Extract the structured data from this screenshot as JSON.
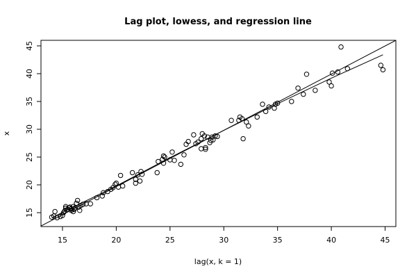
{
  "chart_data": {
    "type": "scatter",
    "title": "Lag plot, lowess, and regression line",
    "xlabel": "lag(x, k = 1)",
    "ylabel": "x",
    "xlim": [
      13.0,
      46.0
    ],
    "ylim": [
      12.5,
      46.0
    ],
    "xticks": [
      15,
      20,
      25,
      30,
      35,
      40,
      45
    ],
    "yticks": [
      15,
      20,
      25,
      30,
      35,
      40,
      45
    ],
    "grid": false,
    "legend": "none",
    "point_style": "open-circle",
    "points": [
      [
        14.0,
        14.2
      ],
      [
        14.2,
        14.4
      ],
      [
        14.3,
        15.2
      ],
      [
        14.5,
        14.1
      ],
      [
        14.8,
        14.3
      ],
      [
        15.0,
        14.5
      ],
      [
        15.1,
        15.0
      ],
      [
        15.2,
        15.3
      ],
      [
        15.3,
        15.8
      ],
      [
        15.3,
        16.1
      ],
      [
        15.4,
        15.5
      ],
      [
        15.5,
        15.6
      ],
      [
        15.6,
        15.9
      ],
      [
        15.7,
        16.0
      ],
      [
        15.8,
        15.7
      ],
      [
        15.8,
        15.4
      ],
      [
        15.9,
        15.5
      ],
      [
        16.0,
        16.1
      ],
      [
        16.0,
        15.2
      ],
      [
        16.1,
        15.6
      ],
      [
        16.2,
        15.9
      ],
      [
        16.3,
        16.7
      ],
      [
        16.4,
        17.2
      ],
      [
        16.5,
        16.0
      ],
      [
        16.6,
        15.4
      ],
      [
        16.7,
        16.3
      ],
      [
        16.9,
        16.5
      ],
      [
        17.2,
        16.6
      ],
      [
        17.6,
        16.6
      ],
      [
        18.2,
        17.7
      ],
      [
        18.7,
        18.0
      ],
      [
        18.8,
        18.6
      ],
      [
        19.2,
        18.8
      ],
      [
        19.5,
        19.2
      ],
      [
        19.7,
        19.5
      ],
      [
        19.9,
        20.1
      ],
      [
        20.0,
        20.3
      ],
      [
        20.2,
        19.6
      ],
      [
        20.4,
        21.7
      ],
      [
        20.6,
        19.8
      ],
      [
        21.5,
        22.2
      ],
      [
        21.8,
        21.0
      ],
      [
        21.8,
        20.3
      ],
      [
        22.0,
        21.8
      ],
      [
        22.2,
        20.7
      ],
      [
        22.3,
        22.4
      ],
      [
        22.4,
        21.9
      ],
      [
        23.8,
        22.2
      ],
      [
        23.9,
        24.2
      ],
      [
        24.3,
        24.6
      ],
      [
        24.4,
        25.2
      ],
      [
        24.4,
        23.9
      ],
      [
        24.5,
        25.0
      ],
      [
        25.0,
        24.5
      ],
      [
        25.2,
        25.9
      ],
      [
        25.4,
        24.4
      ],
      [
        26.0,
        23.7
      ],
      [
        26.3,
        25.4
      ],
      [
        26.5,
        27.3
      ],
      [
        26.7,
        27.8
      ],
      [
        27.2,
        29.0
      ],
      [
        27.4,
        27.4
      ],
      [
        27.6,
        27.7
      ],
      [
        27.9,
        26.5
      ],
      [
        27.9,
        28.3
      ],
      [
        28.0,
        29.2
      ],
      [
        28.2,
        28.8
      ],
      [
        28.3,
        26.7
      ],
      [
        28.3,
        26.4
      ],
      [
        28.5,
        28.6
      ],
      [
        28.7,
        27.6
      ],
      [
        28.8,
        28.0
      ],
      [
        28.9,
        28.6
      ],
      [
        29.0,
        28.1
      ],
      [
        29.2,
        28.8
      ],
      [
        29.4,
        28.7
      ],
      [
        30.7,
        31.6
      ],
      [
        31.4,
        31.6
      ],
      [
        31.5,
        32.2
      ],
      [
        31.7,
        31.9
      ],
      [
        31.8,
        28.3
      ],
      [
        32.1,
        31.3
      ],
      [
        32.3,
        30.6
      ],
      [
        33.1,
        32.2
      ],
      [
        33.6,
        34.5
      ],
      [
        33.9,
        33.2
      ],
      [
        34.2,
        34.0
      ],
      [
        34.7,
        33.8
      ],
      [
        34.8,
        34.5
      ],
      [
        35.0,
        34.7
      ],
      [
        36.3,
        35.0
      ],
      [
        36.9,
        37.4
      ],
      [
        37.4,
        36.3
      ],
      [
        37.7,
        39.9
      ],
      [
        38.5,
        37.0
      ],
      [
        39.8,
        38.5
      ],
      [
        40.0,
        37.8
      ],
      [
        40.1,
        40.1
      ],
      [
        40.6,
        40.3
      ],
      [
        40.9,
        44.8
      ],
      [
        41.5,
        40.9
      ],
      [
        44.6,
        41.5
      ],
      [
        44.8,
        40.7
      ]
    ],
    "regression_line": {
      "x": [
        13.0,
        46.0
      ],
      "y": [
        12.6,
        46.0
      ]
    },
    "lowess_line": {
      "x": [
        14.0,
        20.0,
        25.0,
        30.0,
        35.0,
        40.0,
        44.8
      ],
      "y": [
        14.1,
        19.8,
        24.9,
        29.8,
        34.6,
        39.2,
        43.4
      ]
    }
  }
}
